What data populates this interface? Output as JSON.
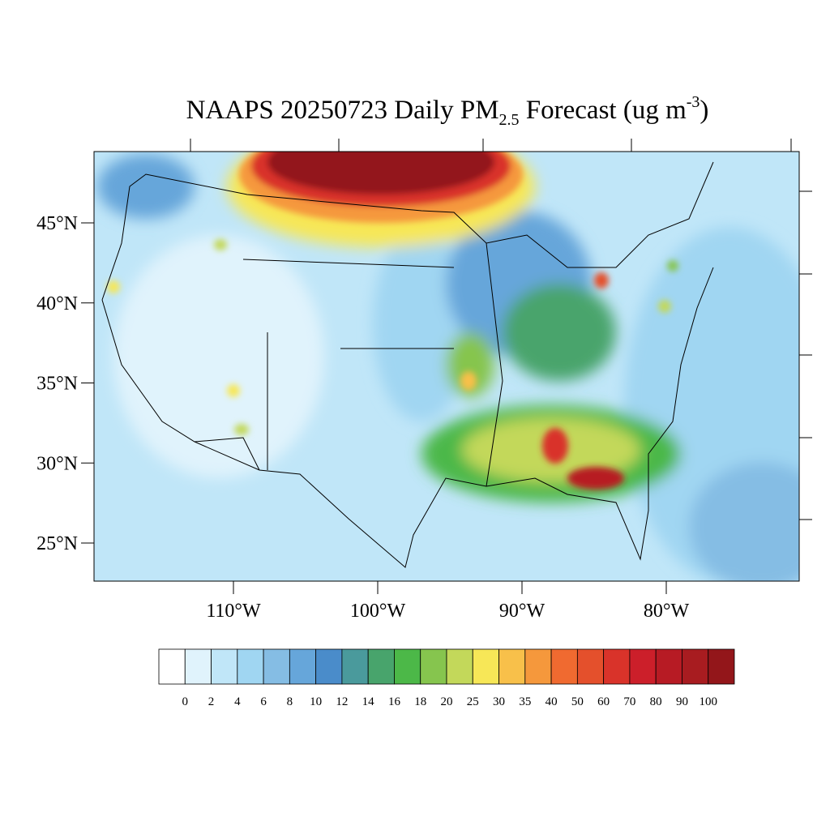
{
  "title": {
    "main": "NAAPS 20250723 Daily PM",
    "sub": "2.5",
    "rest": " Forecast (ug m",
    "sup": "-3",
    "end": ")"
  },
  "lat_ticks": [
    {
      "value": 45,
      "label": "45°N"
    },
    {
      "value": 40,
      "label": "40°N"
    },
    {
      "value": 35,
      "label": "35°N"
    },
    {
      "value": 30,
      "label": "30°N"
    },
    {
      "value": 25,
      "label": "25°N"
    }
  ],
  "lon_ticks": [
    {
      "value": -110,
      "label": "110°W"
    },
    {
      "value": -100,
      "label": "100°W"
    },
    {
      "value": -90,
      "label": "90°W"
    },
    {
      "value": -80,
      "label": "80°W"
    }
  ],
  "colorbar": {
    "levels": [
      0,
      2,
      4,
      6,
      8,
      10,
      12,
      14,
      16,
      18,
      20,
      25,
      30,
      35,
      40,
      50,
      60,
      70,
      80,
      90,
      100
    ],
    "colors": [
      "#ffffff",
      "#e0f3fc",
      "#c0e6f8",
      "#a0d6f2",
      "#85bde4",
      "#66a6da",
      "#4a8cca",
      "#4a9a9c",
      "#48a46c",
      "#4cb848",
      "#86c54e",
      "#c3d85a",
      "#f7e757",
      "#f8c04a",
      "#f5983c",
      "#f06a30",
      "#e4502c",
      "#d9332a",
      "#cc1f2a",
      "#b71b24",
      "#a81c20",
      "#93161a"
    ]
  }
}
